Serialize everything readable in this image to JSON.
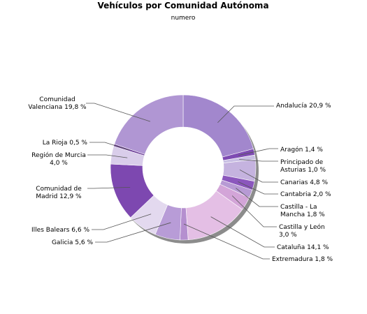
{
  "chart_data": {
    "type": "pie",
    "title": "Vehículos por Comunidad Autónoma",
    "subtitle": "numero",
    "donut": true,
    "slices": [
      {
        "name": "Andalucía",
        "value": 20.9,
        "label_lines": [
          "Andalucía 20,9 %"
        ],
        "color": "#a287cd"
      },
      {
        "name": "Aragón",
        "value": 1.4,
        "label_lines": [
          "Aragón 1,4 %"
        ],
        "color": "#7e4bb3"
      },
      {
        "name": "Principado de Asturias",
        "value": 1.0,
        "label_lines": [
          "Principado de",
          "Asturias 1,0 %"
        ],
        "color": "#c8bee3"
      },
      {
        "name": "Canarias",
        "value": 4.8,
        "label_lines": [
          "Canarias 4,8 %"
        ],
        "color": "#c5b3df"
      },
      {
        "name": "Cantabria",
        "value": 2.0,
        "label_lines": [
          "Cantabria 2,0 %"
        ],
        "color": "#8b57bd"
      },
      {
        "name": "Castilla - La Mancha",
        "value": 1.8,
        "label_lines": [
          "Castilla - La",
          "Mancha 1,8 %"
        ],
        "color": "#b79ad4"
      },
      {
        "name": "Castilla y León",
        "value": 3.0,
        "label_lines": [
          "Castilla y León",
          "3,0 %"
        ],
        "color": "#d3a5d8"
      },
      {
        "name": "Cataluña",
        "value": 14.1,
        "label_lines": [
          "Cataluña 14,1 %"
        ],
        "color": "#e4bfe5"
      },
      {
        "name": "Extremadura",
        "value": 1.8,
        "label_lines": [
          "Extremadura 1,8 %"
        ],
        "color": "#b58fcf"
      },
      {
        "name": "Galicia",
        "value": 5.6,
        "label_lines": [
          "Galicia 5,6 %"
        ],
        "color": "#b89cd7"
      },
      {
        "name": "Illes Balears",
        "value": 6.6,
        "label_lines": [
          "Illes Balears 6,6 %"
        ],
        "color": "#e3d9ef"
      },
      {
        "name": "Comunidad de Madrid",
        "value": 12.9,
        "label_lines": [
          "Comunidad de",
          "Madrid 12,9 %"
        ],
        "color": "#7d48b0"
      },
      {
        "name": "Región de Murcia",
        "value": 4.0,
        "label_lines": [
          "Región de Murcia",
          "4,0 %"
        ],
        "color": "#d9cdea"
      },
      {
        "name": "La Rioja",
        "value": 0.5,
        "label_lines": [
          "La Rioja 0,5 %"
        ],
        "color": "#6a3a96"
      },
      {
        "name": "Comunidad Valenciana",
        "value": 19.8,
        "label_lines": [
          "Comunidad",
          "Valenciana 19,8 %"
        ],
        "color": "#b096d3"
      }
    ]
  }
}
